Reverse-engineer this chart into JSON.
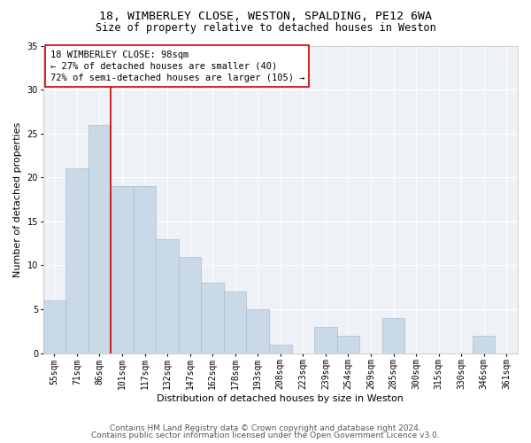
{
  "title1": "18, WIMBERLEY CLOSE, WESTON, SPALDING, PE12 6WA",
  "title2": "Size of property relative to detached houses in Weston",
  "xlabel": "Distribution of detached houses by size in Weston",
  "ylabel": "Number of detached properties",
  "footer1": "Contains HM Land Registry data © Crown copyright and database right 2024.",
  "footer2": "Contains public sector information licensed under the Open Government Licence v3.0.",
  "categories": [
    "55sqm",
    "71sqm",
    "86sqm",
    "101sqm",
    "117sqm",
    "132sqm",
    "147sqm",
    "162sqm",
    "178sqm",
    "193sqm",
    "208sqm",
    "223sqm",
    "239sqm",
    "254sqm",
    "269sqm",
    "285sqm",
    "300sqm",
    "315sqm",
    "330sqm",
    "346sqm",
    "361sqm"
  ],
  "values": [
    6,
    21,
    26,
    19,
    19,
    13,
    11,
    8,
    7,
    5,
    1,
    0,
    3,
    2,
    0,
    4,
    0,
    0,
    0,
    2,
    0
  ],
  "bar_color": "#c9d9e8",
  "bar_edge_color": "#a8bece",
  "vline_color": "#cc0000",
  "annotation_text": "18 WIMBERLEY CLOSE: 98sqm\n← 27% of detached houses are smaller (40)\n72% of semi-detached houses are larger (105) →",
  "ylim": [
    0,
    35
  ],
  "yticks": [
    0,
    5,
    10,
    15,
    20,
    25,
    30,
    35
  ],
  "bg_color": "#eef2f7",
  "grid_color": "#ffffff",
  "title1_fontsize": 9.5,
  "title2_fontsize": 8.5,
  "axis_label_fontsize": 8,
  "tick_fontsize": 7,
  "annotation_fontsize": 7.5,
  "footer_fontsize": 6.5
}
